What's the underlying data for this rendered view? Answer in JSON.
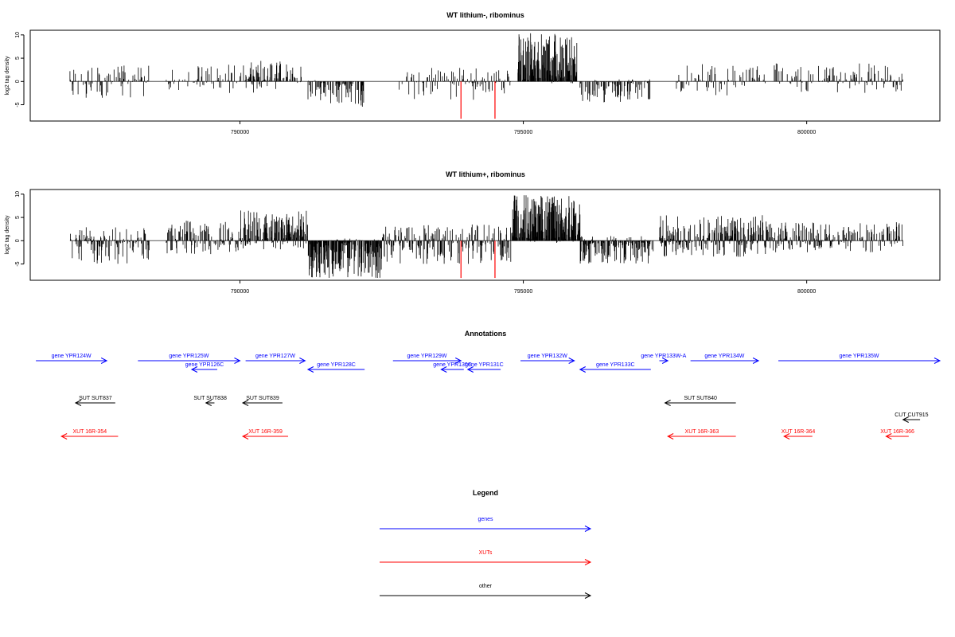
{
  "colors": {
    "gene": "#0000ff",
    "xut": "#ff0000",
    "other": "#000000",
    "axis": "#000000",
    "highlight": "#ff0000"
  },
  "chart_data": [
    {
      "type": "bar",
      "title": "WT lithium-, ribominus",
      "ylabel": "log2 tag density",
      "xlim": [
        786300,
        802350
      ],
      "ylim": [
        -8.5,
        11
      ],
      "yticks": [
        -5,
        0,
        5,
        10
      ],
      "xticks": [
        790000,
        795000,
        800000
      ],
      "xtick_labels": [
        "790000",
        "795000",
        "800000"
      ],
      "highlight_bars": [
        {
          "x": 793900,
          "y": -8
        },
        {
          "x": 794500,
          "y": -8
        }
      ],
      "regions": [
        {
          "start": 787000,
          "end": 788400,
          "min": -3.5,
          "max": 3.5,
          "density": 1.2
        },
        {
          "start": 788700,
          "end": 790700,
          "min": -2.5,
          "max": 3.6,
          "density": 1.0
        },
        {
          "start": 790050,
          "end": 791100,
          "min": -0.5,
          "max": 4.5,
          "density": 1.6
        },
        {
          "start": 791200,
          "end": 792200,
          "min": -5.5,
          "max": 0.3,
          "density": 1.8
        },
        {
          "start": 792800,
          "end": 794800,
          "min": -4.0,
          "max": 3.0,
          "density": 1.1
        },
        {
          "start": 794900,
          "end": 795950,
          "min": -0.5,
          "max": 10.5,
          "density": 3.5
        },
        {
          "start": 796000,
          "end": 797300,
          "min": -4.5,
          "max": 0.5,
          "density": 1.5
        },
        {
          "start": 797700,
          "end": 799300,
          "min": -3.0,
          "max": 3.8,
          "density": 1.0
        },
        {
          "start": 799400,
          "end": 801700,
          "min": -2.5,
          "max": 4.0,
          "density": 1.1
        }
      ]
    },
    {
      "type": "bar",
      "title": "WT lithium+, ribominus",
      "ylabel": "log2 tag density",
      "xlim": [
        786300,
        802350
      ],
      "ylim": [
        -8.5,
        11
      ],
      "yticks": [
        -5,
        0,
        5,
        10
      ],
      "xticks": [
        790000,
        795000,
        800000
      ],
      "xtick_labels": [
        "790000",
        "795000",
        "800000"
      ],
      "highlight_bars": [
        {
          "x": 793900,
          "y": -8
        },
        {
          "x": 794500,
          "y": -8
        }
      ],
      "regions": [
        {
          "start": 787000,
          "end": 788400,
          "min": -5.0,
          "max": 3.0,
          "density": 2.2
        },
        {
          "start": 788700,
          "end": 790000,
          "min": -3.0,
          "max": 4.5,
          "density": 2.0
        },
        {
          "start": 790000,
          "end": 791200,
          "min": -2.0,
          "max": 6.5,
          "density": 3.5
        },
        {
          "start": 791200,
          "end": 792500,
          "min": -8.0,
          "max": 0.5,
          "density": 3.5
        },
        {
          "start": 792500,
          "end": 794800,
          "min": -5.0,
          "max": 3.5,
          "density": 2.0
        },
        {
          "start": 794800,
          "end": 796000,
          "min": -0.5,
          "max": 10.0,
          "density": 4.0
        },
        {
          "start": 796000,
          "end": 797300,
          "min": -5.0,
          "max": 1.0,
          "density": 2.5
        },
        {
          "start": 797400,
          "end": 799300,
          "min": -3.5,
          "max": 5.5,
          "density": 3.0
        },
        {
          "start": 799300,
          "end": 801700,
          "min": -2.5,
          "max": 4.0,
          "density": 2.0
        }
      ]
    }
  ],
  "annotations": {
    "title": "Annotations",
    "features": [
      {
        "label": "gene YPR124W",
        "type": "gene",
        "start": 786400,
        "end": 787650,
        "strand": "+",
        "row": 0
      },
      {
        "label": "gene YPR125W",
        "type": "gene",
        "start": 788200,
        "end": 790000,
        "strand": "+",
        "row": 0
      },
      {
        "label": "gene YPR126C",
        "type": "gene",
        "start": 789150,
        "end": 789600,
        "strand": "-",
        "row": 1
      },
      {
        "label": "gene YPR127W",
        "type": "gene",
        "start": 790100,
        "end": 791150,
        "strand": "+",
        "row": 0
      },
      {
        "label": "gene YPR128C",
        "type": "gene",
        "start": 791200,
        "end": 792200,
        "strand": "-",
        "row": 1
      },
      {
        "label": "gene YPR129W",
        "type": "gene",
        "start": 792700,
        "end": 793900,
        "strand": "+",
        "row": 0
      },
      {
        "label": "gene YPR130C",
        "type": "gene",
        "start": 793550,
        "end": 793950,
        "strand": "-",
        "row": 1
      },
      {
        "label": "gene YPR131C",
        "type": "gene",
        "start": 794020,
        "end": 794600,
        "strand": "-",
        "row": 1
      },
      {
        "label": "gene YPR132W",
        "type": "gene",
        "start": 794950,
        "end": 795900,
        "strand": "+",
        "row": 0
      },
      {
        "label": "gene YPR133C",
        "type": "gene",
        "start": 796000,
        "end": 797250,
        "strand": "-",
        "row": 1
      },
      {
        "label": "gene YPR133W-A",
        "type": "gene",
        "start": 797400,
        "end": 797550,
        "strand": "+",
        "row": 0
      },
      {
        "label": "gene YPR134W",
        "type": "gene",
        "start": 797950,
        "end": 799150,
        "strand": "+",
        "row": 0
      },
      {
        "label": "gene YPR135W",
        "type": "gene",
        "start": 799500,
        "end": 802350,
        "strand": "+",
        "row": 0
      },
      {
        "label": "SUT SUT837",
        "type": "other",
        "start": 787100,
        "end": 787800,
        "strand": "-",
        "row": 2
      },
      {
        "label": "SUT SUT838",
        "type": "other",
        "start": 789400,
        "end": 789550,
        "strand": "-",
        "row": 2
      },
      {
        "label": "SUT SUT839",
        "type": "other",
        "start": 790050,
        "end": 790750,
        "strand": "-",
        "row": 2
      },
      {
        "label": "SUT SUT840",
        "type": "other",
        "start": 797500,
        "end": 798750,
        "strand": "-",
        "row": 2
      },
      {
        "label": "CUT CUT915",
        "type": "other",
        "start": 801700,
        "end": 802000,
        "strand": "-",
        "row": 3
      },
      {
        "label": "XUT 16R-354",
        "type": "xut",
        "start": 786850,
        "end": 787850,
        "strand": "-",
        "row": 4
      },
      {
        "label": "XUT 16R-359",
        "type": "xut",
        "start": 790050,
        "end": 790850,
        "strand": "-",
        "row": 4
      },
      {
        "label": "XUT 16R-363",
        "type": "xut",
        "start": 797550,
        "end": 798750,
        "strand": "-",
        "row": 4
      },
      {
        "label": "XUT 16R-364",
        "type": "xut",
        "start": 799600,
        "end": 800100,
        "strand": "-",
        "row": 4
      },
      {
        "label": "XUT 16R-366",
        "type": "xut",
        "start": 801400,
        "end": 801800,
        "strand": "-",
        "row": 4
      }
    ]
  },
  "legend": {
    "title": "Legend",
    "items": [
      {
        "label": "genes",
        "type": "gene"
      },
      {
        "label": "XUTs",
        "type": "xut"
      },
      {
        "label": "other",
        "type": "other"
      }
    ]
  }
}
